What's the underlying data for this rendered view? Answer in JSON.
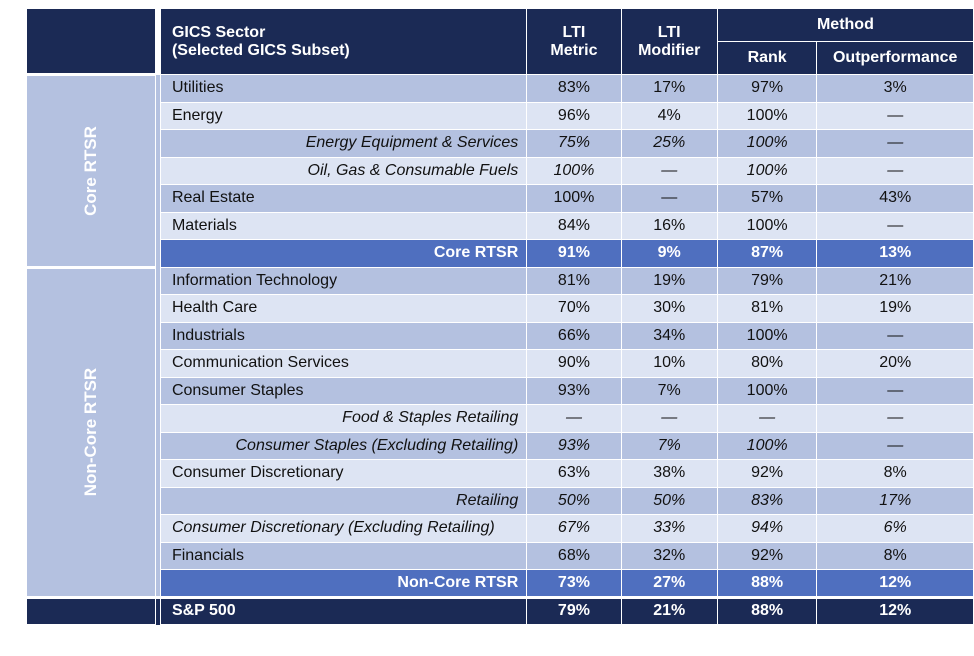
{
  "headers": {
    "sector_line1": "GICS Sector",
    "sector_line2": "(Selected GICS Subset)",
    "lti_metric_line1": "LTI",
    "lti_metric_line2": "Metric",
    "lti_modifier_line1": "LTI",
    "lti_modifier_line2": "Modifier",
    "method": "Method",
    "rank": "Rank",
    "outperformance": "Outperformance"
  },
  "groups": {
    "core": "Core RTSR",
    "noncore": "Non-Core RTSR"
  },
  "rows": [
    {
      "name": "Utilities",
      "metric": "83%",
      "modifier": "17%",
      "rank": "97%",
      "outperf": "3%"
    },
    {
      "name": "Energy",
      "metric": "96%",
      "modifier": "4%",
      "rank": "100%",
      "outperf": "—"
    },
    {
      "name": "Energy Equipment & Services",
      "metric": "75%",
      "modifier": "25%",
      "rank": "100%",
      "outperf": "—"
    },
    {
      "name": "Oil, Gas & Consumable Fuels",
      "metric": "100%",
      "modifier": "—",
      "rank": "100%",
      "outperf": "—"
    },
    {
      "name": "Real Estate",
      "metric": "100%",
      "modifier": "—",
      "rank": "57%",
      "outperf": "43%"
    },
    {
      "name": "Materials",
      "metric": "84%",
      "modifier": "16%",
      "rank": "100%",
      "outperf": "—"
    },
    {
      "name": "Core RTSR",
      "metric": "91%",
      "modifier": "9%",
      "rank": "87%",
      "outperf": "13%"
    },
    {
      "name": "Information Technology",
      "metric": "81%",
      "modifier": "19%",
      "rank": "79%",
      "outperf": "21%"
    },
    {
      "name": "Health Care",
      "metric": "70%",
      "modifier": "30%",
      "rank": "81%",
      "outperf": "19%"
    },
    {
      "name": "Industrials",
      "metric": "66%",
      "modifier": "34%",
      "rank": "100%",
      "outperf": "—"
    },
    {
      "name": "Communication Services",
      "metric": "90%",
      "modifier": "10%",
      "rank": "80%",
      "outperf": "20%"
    },
    {
      "name": "Consumer Staples",
      "metric": "93%",
      "modifier": "7%",
      "rank": "100%",
      "outperf": "—"
    },
    {
      "name": "Food & Staples Retailing",
      "metric": "—",
      "modifier": "—",
      "rank": "—",
      "outperf": "—"
    },
    {
      "name": "Consumer Staples (Excluding Retailing)",
      "metric": "93%",
      "modifier": "7%",
      "rank": "100%",
      "outperf": "—"
    },
    {
      "name": "Consumer Discretionary",
      "metric": "63%",
      "modifier": "38%",
      "rank": "92%",
      "outperf": "8%"
    },
    {
      "name": "Retailing",
      "metric": "50%",
      "modifier": "50%",
      "rank": "83%",
      "outperf": "17%"
    },
    {
      "name": "Consumer Discretionary (Excluding Retailing)",
      "metric": "67%",
      "modifier": "33%",
      "rank": "94%",
      "outperf": "6%"
    },
    {
      "name": "Financials",
      "metric": "68%",
      "modifier": "32%",
      "rank": "92%",
      "outperf": "8%"
    },
    {
      "name": "Non-Core RTSR",
      "metric": "73%",
      "modifier": "27%",
      "rank": "88%",
      "outperf": "12%"
    }
  ],
  "total": {
    "name": "S&P 500",
    "metric": "79%",
    "modifier": "21%",
    "rank": "88%",
    "outperf": "12%"
  }
}
